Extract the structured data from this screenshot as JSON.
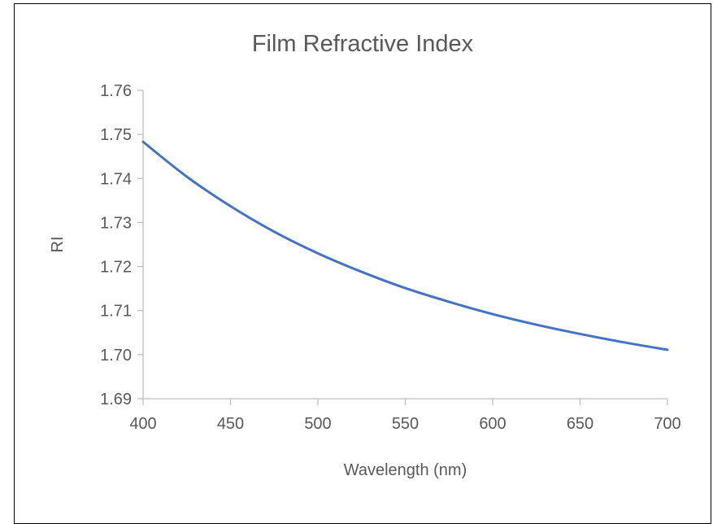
{
  "chart_data": {
    "type": "line",
    "title": "Film Refractive Index",
    "xlabel": "Wavelength (nm)",
    "ylabel": "RI",
    "xlim": [
      400,
      700
    ],
    "ylim": [
      1.69,
      1.76
    ],
    "x_ticks": [
      "400",
      "450",
      "500",
      "550",
      "600",
      "650",
      "700"
    ],
    "y_ticks": [
      "1.69",
      "1.70",
      "1.71",
      "1.72",
      "1.73",
      "1.74",
      "1.75",
      "1.76"
    ],
    "grid": false,
    "legend": "none",
    "series": [
      {
        "color": "#4472C4",
        "x": [
          400,
          425,
          450,
          475,
          500,
          525,
          550,
          575,
          600,
          625,
          650,
          675,
          700
        ],
        "y": [
          1.7483,
          1.7404,
          1.7337,
          1.7279,
          1.723,
          1.7188,
          1.7151,
          1.712,
          1.7092,
          1.7068,
          1.7047,
          1.7028,
          1.7011
        ]
      }
    ]
  }
}
